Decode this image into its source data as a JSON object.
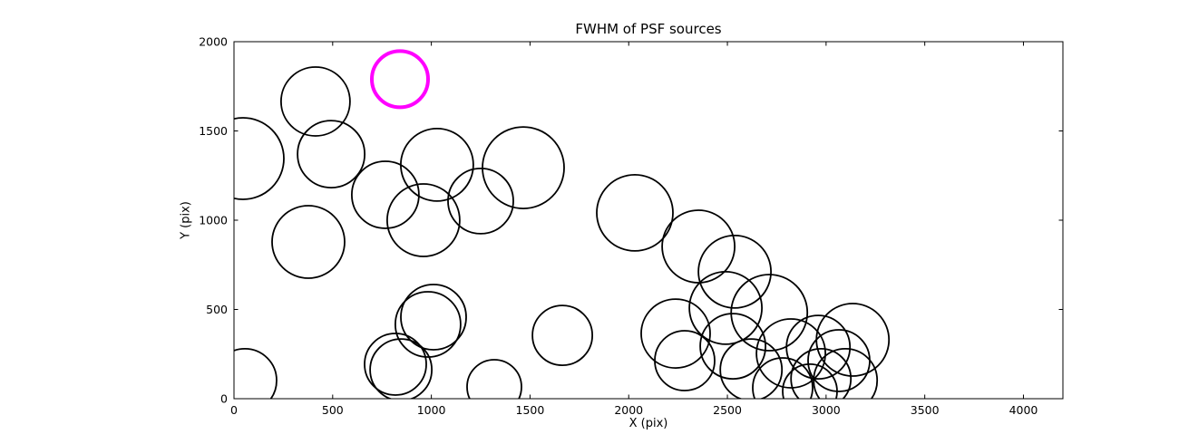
{
  "chart_data": {
    "type": "scatter",
    "title": "FWHM of PSF sources",
    "xlabel": "X (pix)",
    "ylabel": "Y (pix)",
    "xlim": [
      0,
      4200
    ],
    "ylim": [
      0,
      2000
    ],
    "xticks": [
      0,
      500,
      1000,
      1500,
      2000,
      2500,
      3000,
      3500,
      4000
    ],
    "yticks": [
      0,
      500,
      1000,
      1500,
      2000
    ],
    "grid": false,
    "legend": "none",
    "marker": "open-circle",
    "radius_units": "screen-px",
    "background": "#ffffff",
    "axes_color": "#000000",
    "series": [
      {
        "name": "psf-sources",
        "marker_name": "psf-source-circle",
        "color": "#000000",
        "stroke_width": 1.8,
        "points": [
          {
            "x": 413,
            "y": 1665,
            "r": 38
          },
          {
            "x": 46,
            "y": 1345,
            "r": 45
          },
          {
            "x": 492,
            "y": 1370,
            "r": 37
          },
          {
            "x": 767,
            "y": 1142,
            "r": 37
          },
          {
            "x": 1029,
            "y": 1310,
            "r": 40
          },
          {
            "x": 960,
            "y": 1000,
            "r": 40
          },
          {
            "x": 1250,
            "y": 1107,
            "r": 36
          },
          {
            "x": 1466,
            "y": 1294,
            "r": 45
          },
          {
            "x": 377,
            "y": 878,
            "r": 40
          },
          {
            "x": 2031,
            "y": 1041,
            "r": 42
          },
          {
            "x": 2353,
            "y": 853,
            "r": 40
          },
          {
            "x": 2537,
            "y": 711,
            "r": 40
          },
          {
            "x": 1011,
            "y": 457,
            "r": 36
          },
          {
            "x": 983,
            "y": 416,
            "r": 36
          },
          {
            "x": 818,
            "y": 193,
            "r": 34
          },
          {
            "x": 846,
            "y": 162,
            "r": 34
          },
          {
            "x": 55,
            "y": 102,
            "r": 35
          },
          {
            "x": 1319,
            "y": 66,
            "r": 30
          },
          {
            "x": 1664,
            "y": 355,
            "r": 33
          },
          {
            "x": 2238,
            "y": 365,
            "r": 38
          },
          {
            "x": 2284,
            "y": 213,
            "r": 33
          },
          {
            "x": 2491,
            "y": 508,
            "r": 40
          },
          {
            "x": 2528,
            "y": 294,
            "r": 36
          },
          {
            "x": 2620,
            "y": 162,
            "r": 34
          },
          {
            "x": 2712,
            "y": 482,
            "r": 42
          },
          {
            "x": 2822,
            "y": 254,
            "r": 38
          },
          {
            "x": 2960,
            "y": 289,
            "r": 35
          },
          {
            "x": 2974,
            "y": 112,
            "r": 33
          },
          {
            "x": 3098,
            "y": 102,
            "r": 35
          },
          {
            "x": 3135,
            "y": 330,
            "r": 40
          },
          {
            "x": 2780,
            "y": 61,
            "r": 33
          },
          {
            "x": 2918,
            "y": 41,
            "r": 30
          },
          {
            "x": 3065,
            "y": 213,
            "r": 34
          }
        ]
      },
      {
        "name": "highlighted-source",
        "marker_name": "highlighted-psf-circle",
        "color": "#ff00ff",
        "stroke_width": 4,
        "points": [
          {
            "x": 841,
            "y": 1790,
            "r": 31
          }
        ]
      }
    ]
  }
}
